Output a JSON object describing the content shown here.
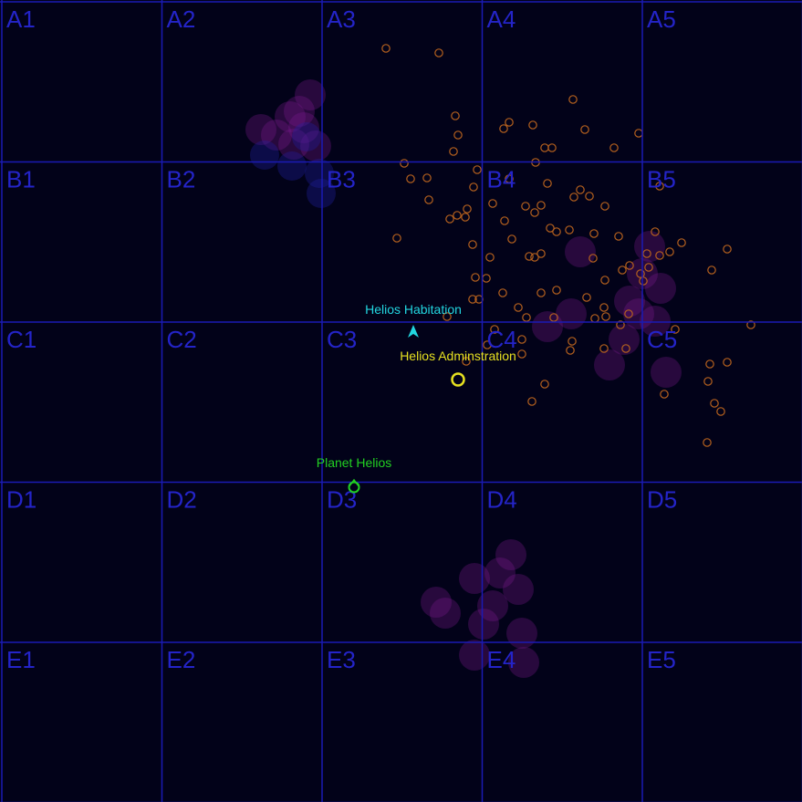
{
  "map": {
    "rows": [
      "A",
      "B",
      "C",
      "D",
      "E"
    ],
    "columns": [
      "1",
      "2",
      "3",
      "4",
      "5"
    ],
    "colors": {
      "background": "#020219",
      "grid": "#1a1ab4",
      "cell_label": "#2424c8",
      "asteroid": "#b4601e",
      "nebula": "#7a1a8c",
      "nebula_blue": "#2020a0"
    }
  },
  "objects": {
    "habitation": {
      "label": "Helios Habitation",
      "icon": "arrow-up-icon",
      "color": "#22d6e0"
    },
    "administration": {
      "label": "Helios Adminstration",
      "icon": "ring-icon",
      "color": "#e6e020"
    },
    "planet": {
      "label": "Planet Helios",
      "icon": "planet-icon",
      "color": "#22d022"
    }
  }
}
